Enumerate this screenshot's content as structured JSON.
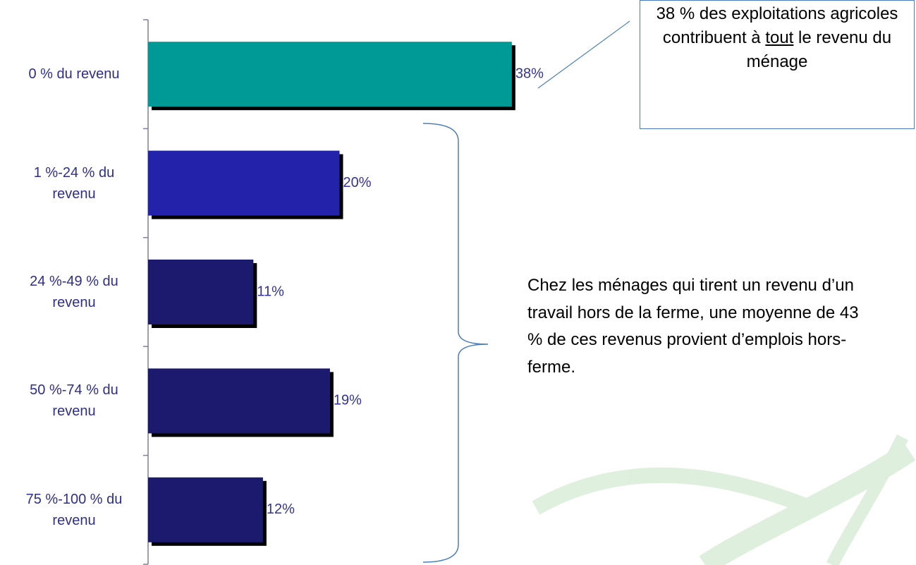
{
  "chart_data": {
    "type": "bar",
    "orientation": "horizontal",
    "categories": [
      "0 % du revenu",
      "1 %-24 % du revenu",
      "24 %-49 % du revenu",
      "50 %-74 % du revenu",
      "75 %-100 % du revenu"
    ],
    "values": [
      38,
      20,
      11,
      19,
      12
    ],
    "value_labels": [
      "38%",
      "20%",
      "11%",
      "19%",
      "12%"
    ],
    "colors": [
      "#009a96",
      "#2222aa",
      "#1c1a6e",
      "#1c1a6e",
      "#1c1a6e"
    ],
    "xlim": [
      0,
      40
    ],
    "callout": {
      "before": "38 % des exploitations agricoles contribuent à ",
      "underlined": "tout",
      "after": " le revenu du ménage"
    },
    "note": "Chez les ménages qui tirent un revenu d’un travail hors de la ferme, une moyenne de 43 % de ces revenus provient d’emplois hors-ferme."
  }
}
